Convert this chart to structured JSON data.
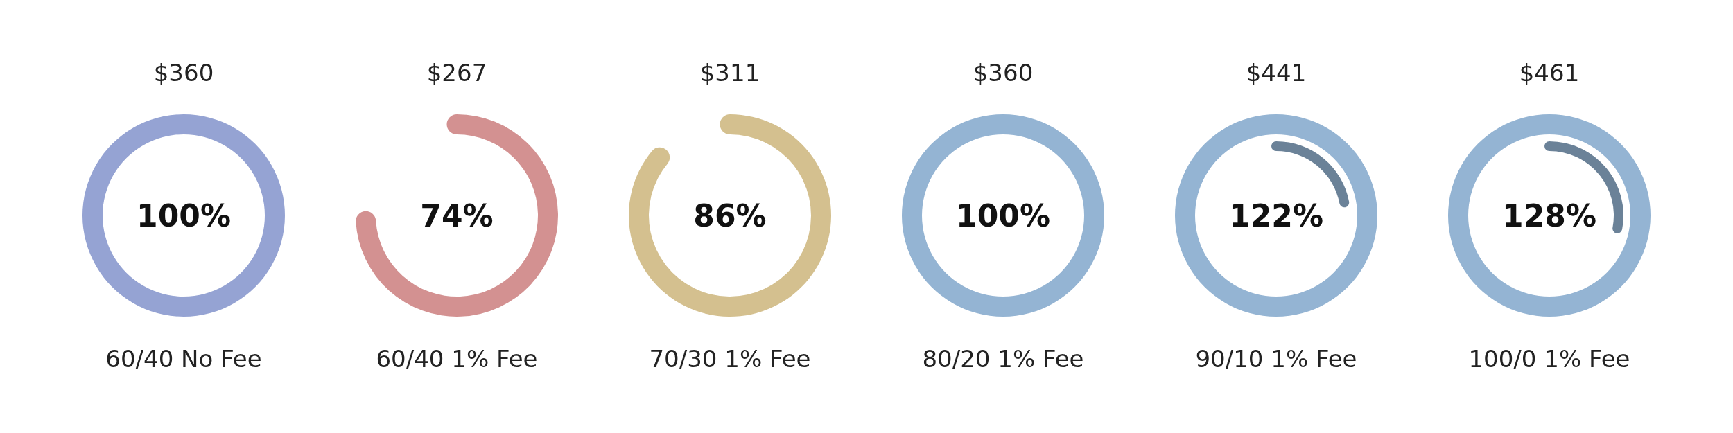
{
  "chart_data": {
    "type": "other",
    "categories": [
      "60/40 No Fee",
      "60/40 1% Fee",
      "70/30 1% Fee",
      "80/20 1% Fee",
      "90/10 1% Fee",
      "100/0 1% Fee"
    ],
    "values": [
      100,
      74,
      86,
      100,
      122,
      128
    ],
    "value_labels": [
      "100%",
      "74%",
      "86%",
      "100%",
      "122%",
      "128%"
    ],
    "colors": [
      "#95a3d3",
      "#d39191",
      "#d4c08f",
      "#94b4d3",
      "#94b4d3",
      "#94b4d3"
    ],
    "annotations": [
      {
        "text": "$360"
      },
      {
        "text": "$267"
      },
      {
        "text": "$311"
      },
      {
        "text": "$360"
      },
      {
        "text": "$441"
      },
      {
        "text": "$461"
      }
    ]
  }
}
